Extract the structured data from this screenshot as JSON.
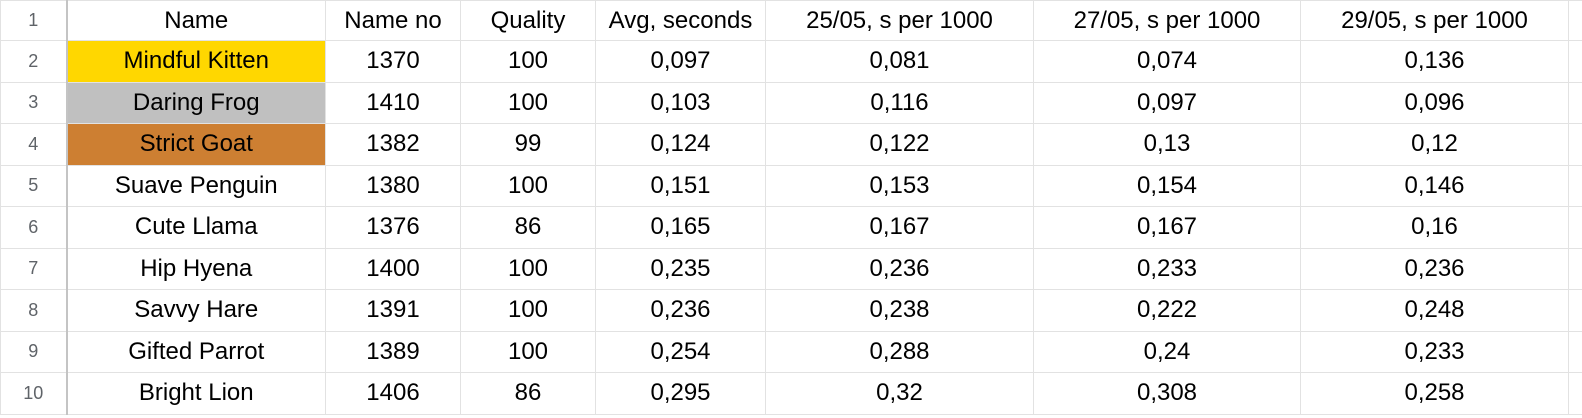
{
  "row_numbers": [
    1,
    2,
    3,
    4,
    5,
    6,
    7,
    8,
    9,
    10
  ],
  "table": {
    "header": [
      "Name",
      "Name no",
      "Quality",
      "Avg, seconds",
      "25/05, s per 1000",
      "27/05, s per 1000",
      "29/05, s per 1000"
    ],
    "rows": [
      [
        "Mindful Kitten",
        "1370",
        "100",
        "0,097",
        "0,081",
        "0,074",
        "0,136"
      ],
      [
        "Daring Frog",
        "1410",
        "100",
        "0,103",
        "0,116",
        "0,097",
        "0,096"
      ],
      [
        "Strict Goat",
        "1382",
        "99",
        "0,124",
        "0,122",
        "0,13",
        "0,12"
      ],
      [
        "Suave Penguin",
        "1380",
        "100",
        "0,151",
        "0,153",
        "0,154",
        "0,146"
      ],
      [
        "Cute Llama",
        "1376",
        "86",
        "0,165",
        "0,167",
        "0,167",
        "0,16"
      ],
      [
        "Hip Hyena",
        "1400",
        "100",
        "0,235",
        "0,236",
        "0,233",
        "0,236"
      ],
      [
        "Savvy Hare",
        "1391",
        "100",
        "0,236",
        "0,238",
        "0,222",
        "0,248"
      ],
      [
        "Gifted Parrot",
        "1389",
        "100",
        "0,254",
        "0,288",
        "0,24",
        "0,233"
      ],
      [
        "Bright Lion",
        "1406",
        "86",
        "0,295",
        "0,32",
        "0,308",
        "0,258"
      ]
    ]
  }
}
